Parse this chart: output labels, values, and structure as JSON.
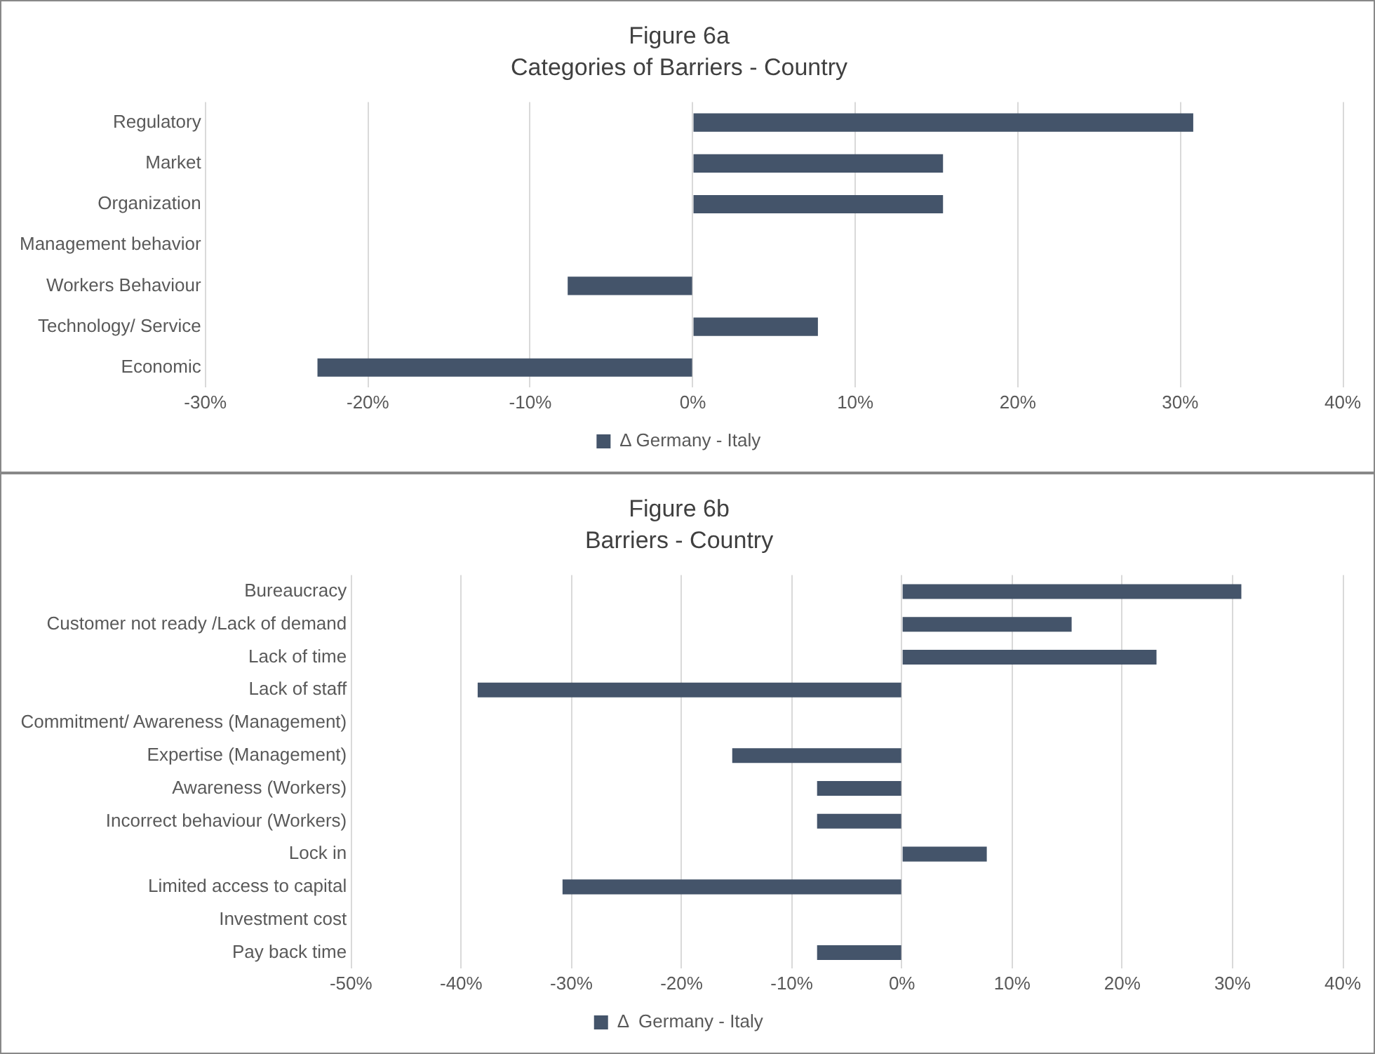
{
  "chart_data": [
    {
      "type": "bar",
      "orientation": "horizontal",
      "title": "Figure 6a",
      "subtitle": "Categories of Barriers - Country",
      "categories": [
        "Regulatory",
        "Market",
        "Organization",
        "Management behavior",
        "Workers Behaviour",
        "Technology/ Service",
        "Economic"
      ],
      "series": [
        {
          "name": "Δ Germany - Italy",
          "color": "#44546a",
          "values": [
            30.8,
            15.4,
            15.4,
            0,
            -7.7,
            7.7,
            -23.1
          ]
        }
      ],
      "xlim": [
        -30,
        40
      ],
      "xticks": [
        {
          "value": -30,
          "label": "-30%"
        },
        {
          "value": -20,
          "label": "-20%"
        },
        {
          "value": -10,
          "label": "-10%"
        },
        {
          "value": 0,
          "label": "0%"
        },
        {
          "value": 10,
          "label": "10%"
        },
        {
          "value": 20,
          "label": "20%"
        },
        {
          "value": 30,
          "label": "30%"
        },
        {
          "value": 40,
          "label": "40%"
        }
      ],
      "grid": "x",
      "legend": "bottom"
    },
    {
      "type": "bar",
      "orientation": "horizontal",
      "title": "Figure 6b",
      "subtitle": "Barriers - Country",
      "categories": [
        "Bureaucracy",
        "Customer not ready /Lack of demand",
        "Lack of time",
        "Lack of staff",
        "Commitment/ Awareness (Management)",
        "Expertise (Management)",
        "Awareness (Workers)",
        "Incorrect behaviour (Workers)",
        "Lock in",
        "Limited access to capital",
        "Investment cost",
        "Pay back time"
      ],
      "series": [
        {
          "name": "Δ  Germany - Italy",
          "color": "#44546a",
          "values": [
            30.8,
            15.4,
            23.1,
            -38.5,
            0,
            -15.4,
            -7.7,
            -7.7,
            7.7,
            -30.8,
            0,
            -7.7
          ]
        }
      ],
      "xlim": [
        -50,
        40
      ],
      "xticks": [
        {
          "value": -50,
          "label": "-50%"
        },
        {
          "value": -40,
          "label": "-40%"
        },
        {
          "value": -30,
          "label": "-30%"
        },
        {
          "value": -20,
          "label": "-20%"
        },
        {
          "value": -10,
          "label": "-10%"
        },
        {
          "value": 0,
          "label": "0%"
        },
        {
          "value": 10,
          "label": "10%"
        },
        {
          "value": 20,
          "label": "20%"
        },
        {
          "value": 30,
          "label": "30%"
        },
        {
          "value": 40,
          "label": "40%"
        }
      ],
      "grid": "x",
      "legend": "bottom"
    }
  ]
}
